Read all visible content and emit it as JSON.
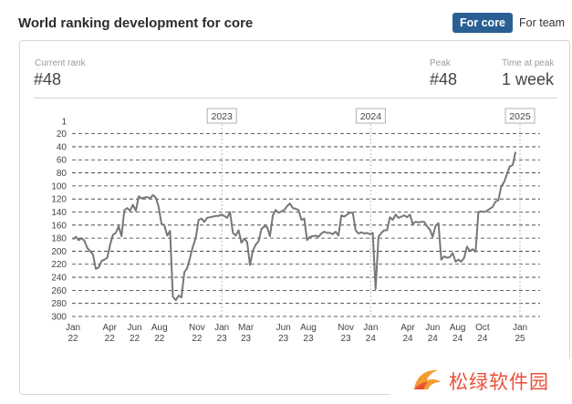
{
  "header": {
    "title": "World ranking development for core"
  },
  "toggle": {
    "active_label": "For core",
    "inactive_label": "For team"
  },
  "stats": {
    "current_rank_label": "Current rank",
    "current_rank_value": "#48",
    "peak_label": "Peak",
    "peak_value": "#48",
    "time_at_peak_label": "Time at peak",
    "time_at_peak_value": "1 week"
  },
  "chart_data": {
    "type": "line",
    "title": "",
    "xlabel": "",
    "ylabel": "",
    "y_axis_inverted": true,
    "ylim": [
      1,
      300
    ],
    "y_ticks": [
      1,
      20,
      40,
      60,
      80,
      100,
      120,
      140,
      160,
      180,
      200,
      220,
      240,
      260,
      280,
      300
    ],
    "x_tick_labels": [
      [
        "Jan",
        "22"
      ],
      [
        "Apr",
        "22"
      ],
      [
        "Jun",
        "22"
      ],
      [
        "Aug",
        "22"
      ],
      [
        "Nov",
        "22"
      ],
      [
        "Jan",
        "23"
      ],
      [
        "Mar",
        "23"
      ],
      [
        "Jun",
        "23"
      ],
      [
        "Aug",
        "23"
      ],
      [
        "Nov",
        "23"
      ],
      [
        "Jan",
        "24"
      ],
      [
        "Apr",
        "24"
      ],
      [
        "Jun",
        "24"
      ],
      [
        "Aug",
        "24"
      ],
      [
        "Oct",
        "24"
      ],
      [
        "Jan",
        "25"
      ]
    ],
    "year_markers": [
      "2023",
      "2024",
      "2025"
    ],
    "series": [
      {
        "color": "#777777",
        "points": [
          [
            "2022-01-01",
            182
          ],
          [
            "2022-01-08",
            178
          ],
          [
            "2022-01-15",
            183
          ],
          [
            "2022-01-22",
            180
          ],
          [
            "2022-01-29",
            184
          ],
          [
            "2022-02-05",
            195
          ],
          [
            "2022-02-12",
            200
          ],
          [
            "2022-02-19",
            205
          ],
          [
            "2022-02-26",
            227
          ],
          [
            "2022-03-05",
            225
          ],
          [
            "2022-03-12",
            215
          ],
          [
            "2022-03-19",
            213
          ],
          [
            "2022-03-26",
            210
          ],
          [
            "2022-04-02",
            190
          ],
          [
            "2022-04-09",
            175
          ],
          [
            "2022-04-16",
            172
          ],
          [
            "2022-04-23",
            162
          ],
          [
            "2022-04-30",
            177
          ],
          [
            "2022-05-07",
            137
          ],
          [
            "2022-05-14",
            134
          ],
          [
            "2022-05-21",
            138
          ],
          [
            "2022-05-28",
            129
          ],
          [
            "2022-06-04",
            138
          ],
          [
            "2022-06-11",
            116
          ],
          [
            "2022-06-18",
            119
          ],
          [
            "2022-06-25",
            118
          ],
          [
            "2022-07-02",
            117
          ],
          [
            "2022-07-09",
            119
          ],
          [
            "2022-07-16",
            114
          ],
          [
            "2022-07-23",
            118
          ],
          [
            "2022-07-30",
            132
          ],
          [
            "2022-08-06",
            158
          ],
          [
            "2022-08-13",
            160
          ],
          [
            "2022-08-20",
            176
          ],
          [
            "2022-08-27",
            169
          ],
          [
            "2022-09-03",
            270
          ],
          [
            "2022-09-10",
            275
          ],
          [
            "2022-09-17",
            268
          ],
          [
            "2022-09-24",
            271
          ],
          [
            "2022-10-01",
            232
          ],
          [
            "2022-10-08",
            226
          ],
          [
            "2022-10-15",
            210
          ],
          [
            "2022-10-22",
            193
          ],
          [
            "2022-10-29",
            180
          ],
          [
            "2022-11-05",
            152
          ],
          [
            "2022-11-12",
            150
          ],
          [
            "2022-11-19",
            155
          ],
          [
            "2022-11-26",
            149
          ],
          [
            "2022-12-03",
            148
          ],
          [
            "2022-12-10",
            147
          ],
          [
            "2022-12-17",
            146
          ],
          [
            "2022-12-24",
            146
          ],
          [
            "2022-12-31",
            144
          ],
          [
            "2023-01-07",
            146
          ],
          [
            "2023-01-14",
            149
          ],
          [
            "2023-01-21",
            140
          ],
          [
            "2023-01-28",
            172
          ],
          [
            "2023-02-04",
            176
          ],
          [
            "2023-02-11",
            168
          ],
          [
            "2023-02-18",
            187
          ],
          [
            "2023-02-25",
            181
          ],
          [
            "2023-03-04",
            186
          ],
          [
            "2023-03-11",
            221
          ],
          [
            "2023-03-18",
            199
          ],
          [
            "2023-03-25",
            190
          ],
          [
            "2023-04-01",
            185
          ],
          [
            "2023-04-08",
            166
          ],
          [
            "2023-04-15",
            162
          ],
          [
            "2023-04-22",
            163
          ],
          [
            "2023-04-29",
            177
          ],
          [
            "2023-05-06",
            145
          ],
          [
            "2023-05-13",
            137
          ],
          [
            "2023-05-20",
            141
          ],
          [
            "2023-05-27",
            139
          ],
          [
            "2023-06-03",
            137
          ],
          [
            "2023-06-10",
            131
          ],
          [
            "2023-06-17",
            127
          ],
          [
            "2023-06-24",
            134
          ],
          [
            "2023-07-01",
            135
          ],
          [
            "2023-07-08",
            137
          ],
          [
            "2023-07-15",
            152
          ],
          [
            "2023-07-22",
            150
          ],
          [
            "2023-07-29",
            183
          ],
          [
            "2023-08-05",
            178
          ],
          [
            "2023-08-12",
            177
          ],
          [
            "2023-08-19",
            176
          ],
          [
            "2023-08-26",
            178
          ],
          [
            "2023-09-02",
            173
          ],
          [
            "2023-09-09",
            170
          ],
          [
            "2023-09-16",
            172
          ],
          [
            "2023-09-23",
            172
          ],
          [
            "2023-09-30",
            174
          ],
          [
            "2023-10-07",
            170
          ],
          [
            "2023-10-14",
            176
          ],
          [
            "2023-10-21",
            145
          ],
          [
            "2023-10-28",
            147
          ],
          [
            "2023-11-04",
            144
          ],
          [
            "2023-11-11",
            141
          ],
          [
            "2023-11-18",
            141
          ],
          [
            "2023-11-25",
            168
          ],
          [
            "2023-12-02",
            173
          ],
          [
            "2023-12-09",
            171
          ],
          [
            "2023-12-16",
            173
          ],
          [
            "2023-12-23",
            172
          ],
          [
            "2023-12-30",
            174
          ],
          [
            "2024-01-06",
            172
          ],
          [
            "2024-01-13",
            258
          ],
          [
            "2024-01-20",
            178
          ],
          [
            "2024-01-27",
            172
          ],
          [
            "2024-02-03",
            168
          ],
          [
            "2024-02-10",
            168
          ],
          [
            "2024-02-17",
            148
          ],
          [
            "2024-02-24",
            152
          ],
          [
            "2024-03-02",
            144
          ],
          [
            "2024-03-09",
            149
          ],
          [
            "2024-03-16",
            147
          ],
          [
            "2024-03-23",
            145
          ],
          [
            "2024-03-30",
            148
          ],
          [
            "2024-04-06",
            144
          ],
          [
            "2024-04-13",
            158
          ],
          [
            "2024-04-20",
            155
          ],
          [
            "2024-04-27",
            156
          ],
          [
            "2024-05-04",
            155
          ],
          [
            "2024-05-11",
            155
          ],
          [
            "2024-05-18",
            162
          ],
          [
            "2024-05-25",
            167
          ],
          [
            "2024-06-01",
            178
          ],
          [
            "2024-06-08",
            161
          ],
          [
            "2024-06-15",
            157
          ],
          [
            "2024-06-22",
            213
          ],
          [
            "2024-06-29",
            208
          ],
          [
            "2024-07-06",
            210
          ],
          [
            "2024-07-13",
            209
          ],
          [
            "2024-07-20",
            203
          ],
          [
            "2024-07-27",
            216
          ],
          [
            "2024-08-03",
            213
          ],
          [
            "2024-08-10",
            216
          ],
          [
            "2024-08-17",
            210
          ],
          [
            "2024-08-24",
            193
          ],
          [
            "2024-08-31",
            200
          ],
          [
            "2024-09-07",
            197
          ],
          [
            "2024-09-14",
            201
          ],
          [
            "2024-09-21",
            140
          ],
          [
            "2024-09-28",
            139
          ],
          [
            "2024-10-05",
            140
          ],
          [
            "2024-10-12",
            138
          ],
          [
            "2024-10-19",
            135
          ],
          [
            "2024-10-26",
            132
          ],
          [
            "2024-11-02",
            124
          ],
          [
            "2024-11-09",
            122
          ],
          [
            "2024-11-16",
            101
          ],
          [
            "2024-11-23",
            94
          ],
          [
            "2024-11-30",
            82
          ],
          [
            "2024-12-07",
            70
          ],
          [
            "2024-12-14",
            68
          ],
          [
            "2024-12-21",
            48
          ]
        ]
      }
    ]
  }
}
